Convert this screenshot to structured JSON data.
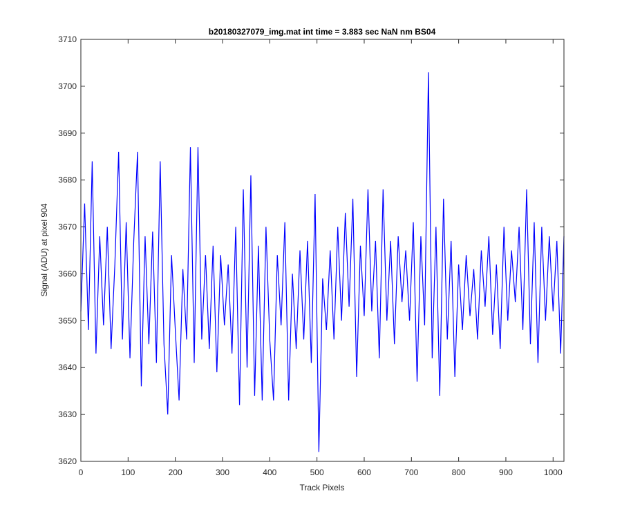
{
  "chart_data": {
    "type": "line",
    "title": "b20180327079_img.mat int time = 3.883 sec  NaN nm BS04",
    "x_label": "Track Pixels",
    "y_label": "Signal (ADU) at pixel 904",
    "xlim": [
      0,
      1023
    ],
    "ylim": [
      3620,
      3710
    ],
    "xticks": [
      0,
      100,
      200,
      300,
      400,
      500,
      600,
      700,
      800,
      900,
      1000
    ],
    "yticks": [
      3620,
      3630,
      3640,
      3650,
      3660,
      3670,
      3680,
      3690,
      3700,
      3710
    ],
    "x": [
      0,
      8,
      16,
      24,
      32,
      40,
      48,
      56,
      64,
      72,
      80,
      88,
      96,
      104,
      112,
      120,
      128,
      136,
      144,
      152,
      160,
      168,
      176,
      184,
      192,
      200,
      208,
      216,
      224,
      232,
      240,
      248,
      256,
      264,
      272,
      280,
      288,
      296,
      304,
      312,
      320,
      328,
      336,
      344,
      352,
      360,
      368,
      376,
      384,
      392,
      400,
      408,
      416,
      424,
      432,
      440,
      448,
      456,
      464,
      472,
      480,
      488,
      496,
      504,
      512,
      520,
      528,
      536,
      544,
      552,
      560,
      568,
      576,
      584,
      592,
      600,
      608,
      616,
      624,
      632,
      640,
      648,
      656,
      664,
      672,
      680,
      688,
      696,
      704,
      712,
      720,
      728,
      736,
      744,
      752,
      760,
      768,
      776,
      784,
      792,
      800,
      808,
      816,
      824,
      832,
      840,
      848,
      856,
      864,
      872,
      880,
      888,
      896,
      904,
      912,
      920,
      928,
      936,
      944,
      952,
      960,
      968,
      976,
      984,
      992,
      1000,
      1008,
      1016,
      1023
    ],
    "series": [
      {
        "color": "#0000ff",
        "values": [
          3652,
          3675,
          3648,
          3684,
          3643,
          3668,
          3649,
          3670,
          3644,
          3662,
          3686,
          3646,
          3671,
          3642,
          3667,
          3686,
          3636,
          3668,
          3645,
          3669,
          3641,
          3684,
          3645,
          3630,
          3664,
          3648,
          3633,
          3661,
          3646,
          3687,
          3641,
          3687,
          3646,
          3664,
          3644,
          3666,
          3639,
          3664,
          3649,
          3662,
          3643,
          3670,
          3632,
          3678,
          3640,
          3681,
          3634,
          3666,
          3633,
          3670,
          3646,
          3633,
          3664,
          3649,
          3671,
          3633,
          3660,
          3644,
          3665,
          3646,
          3667,
          3641,
          3677,
          3622,
          3659,
          3648,
          3665,
          3646,
          3670,
          3650,
          3673,
          3653,
          3676,
          3638,
          3666,
          3651,
          3678,
          3652,
          3667,
          3642,
          3678,
          3650,
          3667,
          3645,
          3668,
          3654,
          3665,
          3650,
          3671,
          3637,
          3668,
          3649,
          3703,
          3642,
          3670,
          3634,
          3676,
          3646,
          3667,
          3638,
          3662,
          3648,
          3664,
          3651,
          3661,
          3646,
          3665,
          3653,
          3668,
          3647,
          3662,
          3644,
          3670,
          3650,
          3665,
          3654,
          3670,
          3648,
          3678,
          3645,
          3671,
          3641,
          3670,
          3650,
          3668,
          3652,
          3667,
          3643,
          3668
        ]
      }
    ],
    "box": true
  }
}
